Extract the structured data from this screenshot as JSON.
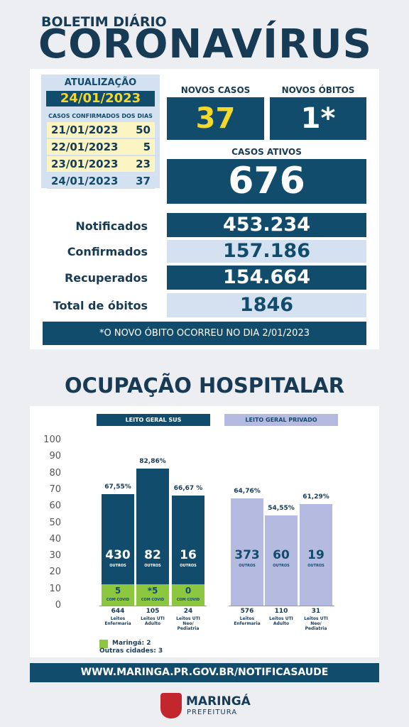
{
  "header": {
    "kicker": "BOLETIM DIÁRIO",
    "title": "CORONAVÍRUS"
  },
  "update": {
    "label": "ATUALIZAÇÃO",
    "date": "24/01/2023",
    "days_label": "CASOS CONFIRMADOS DOS DIAS",
    "days": [
      {
        "date": "21/01/2023",
        "count": "50"
      },
      {
        "date": "22/01/2023",
        "count": "5"
      },
      {
        "date": "23/01/2023",
        "count": "23"
      },
      {
        "date": "24/01/2023",
        "count": "37"
      }
    ]
  },
  "new_cases": {
    "label": "NOVOS CASOS",
    "value": "37"
  },
  "new_deaths": {
    "label": "NOVOS ÓBITOS",
    "value": "1*"
  },
  "active": {
    "label": "CASOS ATIVOS",
    "value": "676"
  },
  "totals": [
    {
      "label": "Notificados",
      "value": "453.234"
    },
    {
      "label": "Confirmados",
      "value": "157.186"
    },
    {
      "label": "Recuperados",
      "value": "154.664"
    },
    {
      "label": "Total de óbitos",
      "value": "1846"
    }
  ],
  "note": "*O NOVO ÓBITO OCORREU NO DIA 2/01/2023",
  "chart_data": {
    "type": "bar",
    "title": "OCUPAÇÃO HOSPITALAR",
    "ylim": [
      0,
      100
    ],
    "yticks": [
      0,
      10,
      20,
      30,
      40,
      50,
      60,
      70,
      80,
      90,
      100
    ],
    "others_label": "OUTROS",
    "covid_label": "COM COVID",
    "groups": [
      {
        "name": "LEITO GERAL SUS",
        "color": "#124c6d",
        "header_color": "#124c6d",
        "header_text": "#ffffff",
        "beds": [
          "644",
          "105",
          "24"
        ],
        "categories": [
          "Leitos Enfermaria",
          "Leitos UTI Adulto",
          "Leitos UTI Neo/ Pediatria"
        ],
        "values": [
          67.55,
          82.86,
          66.67
        ],
        "value_labels": [
          "67,55%",
          "82,86%",
          "66,67 %"
        ],
        "others": [
          "430",
          "82",
          "16"
        ],
        "covid": [
          "5",
          "*5",
          "0"
        ]
      },
      {
        "name": "LEITO GERAL PRIVADO",
        "color": "#b5bae1",
        "header_color": "#b5bae1",
        "header_text": "#124c6d",
        "beds": [
          "576",
          "110",
          "31"
        ],
        "categories": [
          "Leitos Enfermaria",
          "Leitos UTI Adulto",
          "Leitos UTI Neo/ Pediatria"
        ],
        "values": [
          64.76,
          54.55,
          61.29
        ],
        "value_labels": [
          "64,76%",
          "54,55%",
          "61,29%"
        ],
        "others": [
          "373",
          "60",
          "19"
        ]
      }
    ],
    "legend": [
      "Maringá: 2",
      "Outras cidades: 3"
    ]
  },
  "footer": {
    "url": "WWW.MARINGA.PR.GOV.BR/NOTIFICASAUDE",
    "brand": "MARINGÁ",
    "sub": "PREFEITURA"
  }
}
